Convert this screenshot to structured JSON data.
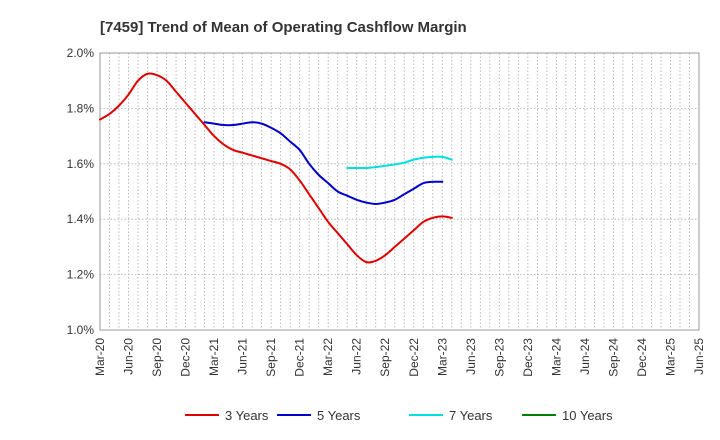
{
  "chart_data": {
    "type": "line",
    "title": "[7459]  Trend of Mean of Operating Cashflow Margin",
    "xlabel": "",
    "ylabel": "",
    "ylim": [
      1.0,
      2.0
    ],
    "y_ticks": [
      1.0,
      1.2,
      1.4,
      1.6,
      1.8,
      2.0
    ],
    "y_tick_labels": [
      "1.0%",
      "1.2%",
      "1.4%",
      "1.6%",
      "1.8%",
      "2.0%"
    ],
    "x_tick_labels": [
      "Mar-20",
      "Jun-20",
      "Sep-20",
      "Dec-20",
      "Mar-21",
      "Jun-21",
      "Sep-21",
      "Dec-21",
      "Mar-22",
      "Jun-22",
      "Sep-22",
      "Dec-22",
      "Mar-23",
      "Jun-23",
      "Sep-23",
      "Dec-23",
      "Mar-24",
      "Jun-24",
      "Sep-24",
      "Dec-24",
      "Mar-25",
      "Jun-25"
    ],
    "grid": true,
    "legend_position": "bottom",
    "series": [
      {
        "name": "3 Years",
        "color": "#e00000",
        "start_index": 0,
        "values": [
          1.76,
          1.78,
          1.81,
          1.85,
          1.9,
          1.925,
          1.92,
          1.9,
          1.86,
          1.82,
          1.78,
          1.74,
          1.7,
          1.67,
          1.65,
          1.64,
          1.63,
          1.62,
          1.61,
          1.6,
          1.58,
          1.54,
          1.49,
          1.44,
          1.39,
          1.35,
          1.31,
          1.27,
          1.245,
          1.25,
          1.27,
          1.3,
          1.33,
          1.36,
          1.39,
          1.405,
          1.41,
          1.405
        ]
      },
      {
        "name": "5 Years",
        "color": "#0000cc",
        "start_index": 11,
        "values": [
          1.75,
          1.745,
          1.74,
          1.74,
          1.745,
          1.75,
          1.745,
          1.73,
          1.71,
          1.68,
          1.65,
          1.6,
          1.56,
          1.53,
          1.5,
          1.485,
          1.47,
          1.46,
          1.455,
          1.46,
          1.47,
          1.49,
          1.51,
          1.53,
          1.535,
          1.535
        ]
      },
      {
        "name": "7 Years",
        "color": "#00e0e0",
        "start_index": 26,
        "values": [
          1.585,
          1.585,
          1.585,
          1.588,
          1.593,
          1.598,
          1.604,
          1.615,
          1.622,
          1.625,
          1.625,
          1.615
        ]
      },
      {
        "name": "10 Years",
        "color": "#008000",
        "start_index": 0,
        "values": []
      }
    ]
  }
}
